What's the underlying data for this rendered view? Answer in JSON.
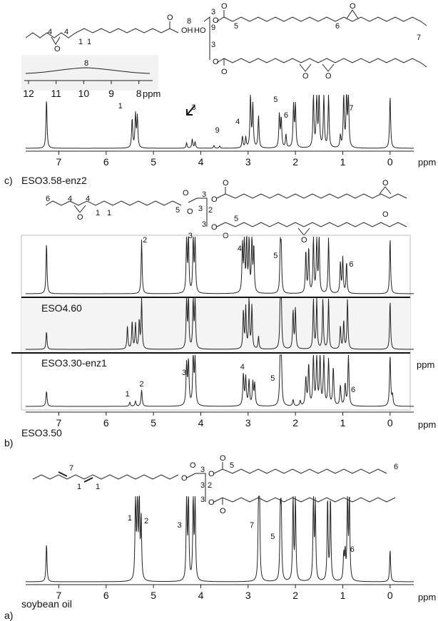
{
  "figure": {
    "panels": {
      "c": {
        "letter": "c)",
        "sample": "ESO3.58-enz2",
        "inset_unit": "ppm",
        "axis_unit": "ppm"
      },
      "b": {
        "letter": "b)",
        "samples": [
          "ESO4.60",
          "ESO3.30-enz1",
          "ESO3.50"
        ],
        "axis_unit": "ppm",
        "axis_unit_upper": "ppm"
      },
      "a": {
        "letter": "a)",
        "sample": "soybean oil",
        "axis_unit": "ppm"
      }
    }
  },
  "chart_data": [
    {
      "type": "line",
      "panel": "c",
      "xlabel": "ppm",
      "xlim": [
        7.7,
        -0.5
      ],
      "x_ticks": [
        "7",
        "6",
        "5",
        "4",
        "3",
        "2",
        "1",
        "0"
      ],
      "series": [
        {
          "peaks": [
            {
              "x": 7.26,
              "height": 0.92
            },
            {
              "x": 5.45,
              "height": 0.55
            },
            {
              "x": 5.38,
              "height": 0.62
            },
            {
              "x": 5.34,
              "height": 0.58
            },
            {
              "x": 4.3,
              "height": 0.1
            },
            {
              "x": 4.18,
              "height": 0.17
            },
            {
              "x": 4.12,
              "height": 0.12
            },
            {
              "x": 3.72,
              "height": 0.05
            },
            {
              "x": 3.6,
              "height": 0.04
            },
            {
              "x": 3.12,
              "height": 0.22
            },
            {
              "x": 3.05,
              "height": 0.2
            },
            {
              "x": 2.95,
              "height": 0.98
            },
            {
              "x": 2.9,
              "height": 0.8
            },
            {
              "x": 2.78,
              "height": 0.6
            },
            {
              "x": 2.34,
              "height": 0.62
            },
            {
              "x": 2.3,
              "height": 0.55
            },
            {
              "x": 2.2,
              "height": 0.25
            },
            {
              "x": 2.04,
              "height": 0.78
            },
            {
              "x": 2.0,
              "height": 0.8
            },
            {
              "x": 1.62,
              "height": 0.98
            },
            {
              "x": 1.55,
              "height": 0.98
            },
            {
              "x": 1.5,
              "height": 0.98
            },
            {
              "x": 1.4,
              "height": 0.98
            },
            {
              "x": 1.3,
              "height": 0.98
            },
            {
              "x": 1.05,
              "height": 0.22
            },
            {
              "x": 0.98,
              "height": 0.98
            },
            {
              "x": 0.92,
              "height": 0.98
            },
            {
              "x": 0.88,
              "height": 0.98
            },
            {
              "x": 0.0,
              "height": 0.98
            }
          ]
        }
      ],
      "peak_labels": [
        {
          "text": "1",
          "x": 5.7
        },
        {
          "text": "3",
          "x": 4.15
        },
        {
          "text": "9",
          "x": 3.65
        },
        {
          "text": "4",
          "x": 3.22
        },
        {
          "text": "5",
          "x": 2.42
        },
        {
          "text": "6",
          "x": 2.2
        },
        {
          "text": "7",
          "x": 0.82
        }
      ],
      "inset": {
        "xlim": [
          12,
          7.5
        ],
        "x_ticks": [
          "12",
          "11",
          "10",
          "9",
          "8"
        ],
        "peak_label": {
          "text": "8",
          "x": 10
        }
      }
    },
    {
      "type": "line",
      "panel": "b",
      "xlabel": "ppm",
      "xlim": [
        7.7,
        -0.5
      ],
      "x_ticks": [
        "7",
        "6",
        "5",
        "4",
        "3",
        "2",
        "1",
        "0"
      ],
      "series": [
        {
          "name": "ESO4.60",
          "peaks": [
            {
              "x": 7.26,
              "height": 0.9
            },
            {
              "x": 5.25,
              "height": 0.95
            },
            {
              "x": 4.3,
              "height": 0.98
            },
            {
              "x": 4.26,
              "height": 0.98
            },
            {
              "x": 4.16,
              "height": 0.98
            },
            {
              "x": 4.12,
              "height": 0.98
            },
            {
              "x": 3.12,
              "height": 0.85
            },
            {
              "x": 3.08,
              "height": 0.98
            },
            {
              "x": 3.03,
              "height": 0.98
            },
            {
              "x": 2.98,
              "height": 0.98
            },
            {
              "x": 2.92,
              "height": 0.98
            },
            {
              "x": 2.88,
              "height": 0.8
            },
            {
              "x": 2.32,
              "height": 0.78
            },
            {
              "x": 2.3,
              "height": 0.75
            },
            {
              "x": 1.78,
              "height": 0.75
            },
            {
              "x": 1.72,
              "height": 0.8
            },
            {
              "x": 1.62,
              "height": 0.98
            },
            {
              "x": 1.55,
              "height": 0.98
            },
            {
              "x": 1.5,
              "height": 0.98
            },
            {
              "x": 1.3,
              "height": 0.98
            },
            {
              "x": 1.05,
              "height": 0.55
            },
            {
              "x": 1.0,
              "height": 0.62
            },
            {
              "x": 0.92,
              "height": 0.55
            },
            {
              "x": 0.0,
              "height": 0.98
            }
          ]
        },
        {
          "name": "ESO3.30-enz1",
          "peaks": [
            {
              "x": 7.26,
              "height": 0.35
            },
            {
              "x": 5.55,
              "height": 0.45
            },
            {
              "x": 5.45,
              "height": 0.55
            },
            {
              "x": 5.38,
              "height": 0.5
            },
            {
              "x": 5.3,
              "height": 0.55
            },
            {
              "x": 5.25,
              "height": 0.98
            },
            {
              "x": 4.3,
              "height": 0.98
            },
            {
              "x": 4.26,
              "height": 0.98
            },
            {
              "x": 4.16,
              "height": 0.98
            },
            {
              "x": 4.12,
              "height": 0.98
            },
            {
              "x": 3.1,
              "height": 0.75
            },
            {
              "x": 3.05,
              "height": 0.8
            },
            {
              "x": 2.98,
              "height": 0.98
            },
            {
              "x": 2.92,
              "height": 0.85
            },
            {
              "x": 2.78,
              "height": 0.25
            },
            {
              "x": 2.32,
              "height": 0.98
            },
            {
              "x": 2.3,
              "height": 0.98
            },
            {
              "x": 2.05,
              "height": 0.75
            },
            {
              "x": 2.0,
              "height": 0.8
            },
            {
              "x": 1.62,
              "height": 0.98
            },
            {
              "x": 1.55,
              "height": 0.98
            },
            {
              "x": 1.42,
              "height": 0.98
            },
            {
              "x": 1.3,
              "height": 0.98
            },
            {
              "x": 1.05,
              "height": 0.45
            },
            {
              "x": 0.98,
              "height": 0.55
            },
            {
              "x": 0.9,
              "height": 0.98
            },
            {
              "x": 0.0,
              "height": 0.95
            }
          ]
        },
        {
          "name": "ESO3.50",
          "peaks": [
            {
              "x": 7.26,
              "height": 0.3
            },
            {
              "x": 5.5,
              "height": 0.08
            },
            {
              "x": 5.38,
              "height": 0.1
            },
            {
              "x": 5.25,
              "height": 0.32
            },
            {
              "x": 4.3,
              "height": 0.8
            },
            {
              "x": 4.26,
              "height": 0.85
            },
            {
              "x": 4.16,
              "height": 0.98
            },
            {
              "x": 4.12,
              "height": 0.9
            },
            {
              "x": 3.1,
              "height": 0.62
            },
            {
              "x": 3.05,
              "height": 0.55
            },
            {
              "x": 2.98,
              "height": 0.5
            },
            {
              "x": 2.9,
              "height": 0.45
            },
            {
              "x": 2.86,
              "height": 0.42
            },
            {
              "x": 2.32,
              "height": 0.98
            },
            {
              "x": 2.3,
              "height": 0.98
            },
            {
              "x": 2.05,
              "height": 0.12
            },
            {
              "x": 1.9,
              "height": 0.1
            },
            {
              "x": 1.78,
              "height": 0.55
            },
            {
              "x": 1.72,
              "height": 0.8
            },
            {
              "x": 1.62,
              "height": 0.98
            },
            {
              "x": 1.55,
              "height": 0.98
            },
            {
              "x": 1.48,
              "height": 0.98
            },
            {
              "x": 1.4,
              "height": 0.95
            },
            {
              "x": 1.3,
              "height": 0.9
            },
            {
              "x": 1.2,
              "height": 0.75
            },
            {
              "x": 1.05,
              "height": 0.4
            },
            {
              "x": 0.95,
              "height": 0.42
            },
            {
              "x": 0.88,
              "height": 0.98
            },
            {
              "x": 0.0,
              "height": 0.98
            },
            {
              "x": -0.05,
              "height": 0.2
            }
          ]
        }
      ],
      "peak_labels": [
        {
          "series": 0,
          "text": "2",
          "x": 5.18
        },
        {
          "series": 0,
          "text": "3",
          "x": 4.22
        },
        {
          "series": 0,
          "text": "4",
          "x": 3.18
        },
        {
          "series": 0,
          "text": "5",
          "x": 2.42
        },
        {
          "series": 0,
          "text": "6",
          "x": 0.82
        },
        {
          "series": 2,
          "text": "1",
          "x": 5.55
        },
        {
          "series": 2,
          "text": "2",
          "x": 5.25
        },
        {
          "series": 2,
          "text": "3",
          "x": 4.35
        },
        {
          "series": 2,
          "text": "4",
          "x": 3.12
        },
        {
          "series": 2,
          "text": "5",
          "x": 2.48
        },
        {
          "series": 2,
          "text": "6",
          "x": 0.78
        }
      ]
    },
    {
      "type": "line",
      "panel": "a",
      "xlabel": "ppm",
      "xlim": [
        7.7,
        -0.5
      ],
      "x_ticks": [
        "7",
        "6",
        "5",
        "4",
        "3",
        "2",
        "1",
        "0"
      ],
      "series": [
        {
          "name": "soybean oil",
          "peaks": [
            {
              "x": 7.26,
              "height": 0.45
            },
            {
              "x": 5.38,
              "height": 0.98
            },
            {
              "x": 5.34,
              "height": 0.98
            },
            {
              "x": 5.3,
              "height": 0.95
            },
            {
              "x": 5.26,
              "height": 0.72
            },
            {
              "x": 4.3,
              "height": 0.98
            },
            {
              "x": 4.26,
              "height": 0.98
            },
            {
              "x": 4.16,
              "height": 0.98
            },
            {
              "x": 4.12,
              "height": 0.98
            },
            {
              "x": 2.78,
              "height": 0.85
            },
            {
              "x": 2.76,
              "height": 0.95
            },
            {
              "x": 2.32,
              "height": 0.75
            },
            {
              "x": 2.3,
              "height": 0.78
            },
            {
              "x": 2.05,
              "height": 0.98
            },
            {
              "x": 2.0,
              "height": 0.98
            },
            {
              "x": 1.62,
              "height": 0.98
            },
            {
              "x": 1.58,
              "height": 0.9
            },
            {
              "x": 1.32,
              "height": 0.98
            },
            {
              "x": 1.26,
              "height": 0.98
            },
            {
              "x": 0.98,
              "height": 0.3
            },
            {
              "x": 0.95,
              "height": 0.32
            },
            {
              "x": 0.9,
              "height": 0.98
            },
            {
              "x": 0.86,
              "height": 0.98
            },
            {
              "x": 0.0,
              "height": 0.38
            }
          ]
        }
      ],
      "peak_labels": [
        {
          "text": "1",
          "x": 5.5
        },
        {
          "text": "2",
          "x": 5.15
        },
        {
          "text": "3",
          "x": 4.45
        },
        {
          "text": "7",
          "x": 2.92
        },
        {
          "text": "5",
          "x": 2.48
        },
        {
          "text": "6",
          "x": 0.8
        }
      ]
    }
  ],
  "structures": {
    "c": {
      "labels": [
        "4",
        "4",
        "1",
        "1",
        "8",
        "OH",
        "3",
        "9",
        "HO",
        "3",
        "5",
        "6",
        "7"
      ],
      "oxygens": [
        "O",
        "O",
        "O",
        "O",
        "O",
        "O",
        "O",
        "O",
        "O"
      ]
    },
    "b": {
      "labels": [
        "6",
        "4",
        "4",
        "1",
        "1",
        "5",
        "3",
        "3",
        "2",
        "3",
        "5"
      ],
      "oxygens": [
        "O",
        "O",
        "O",
        "O",
        "O",
        "O",
        "O",
        "O",
        "O",
        "O"
      ]
    },
    "a": {
      "labels": [
        "7",
        "1",
        "1",
        "3",
        "3",
        "2",
        "3",
        "5",
        "6"
      ],
      "oxygens": [
        "O",
        "O",
        "O",
        "O",
        "O",
        "O"
      ]
    }
  }
}
